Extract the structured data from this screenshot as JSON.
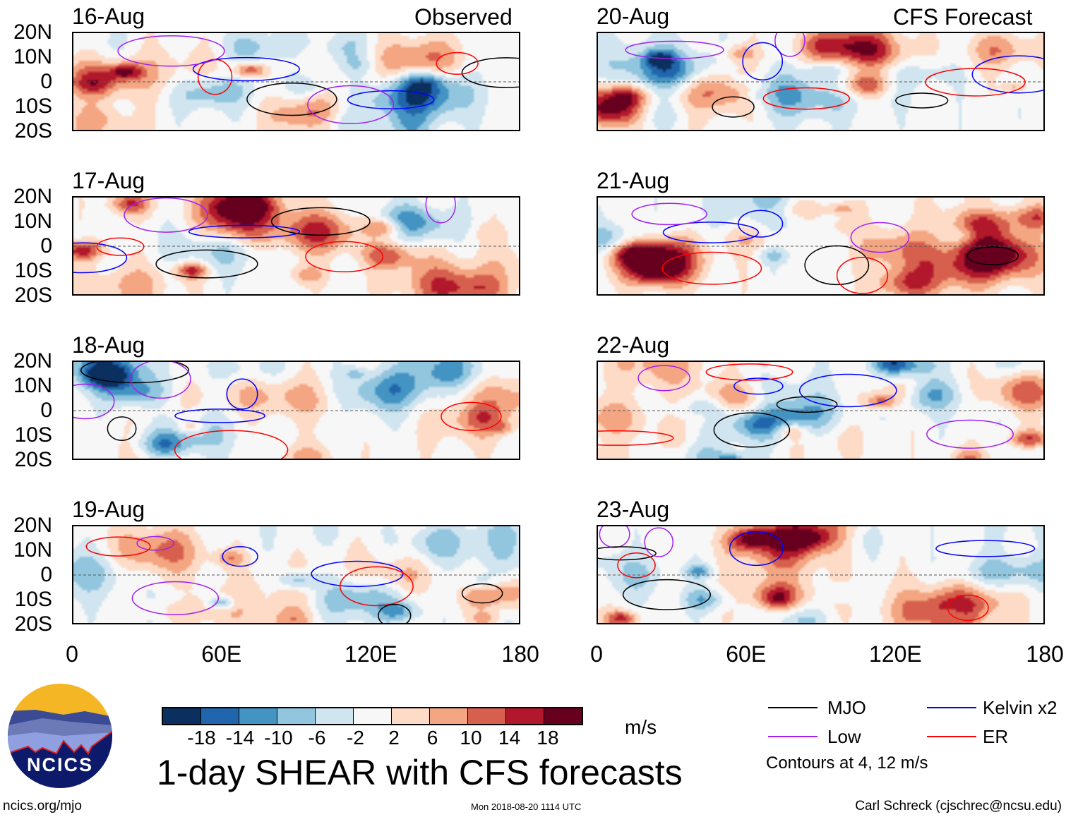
{
  "headers": {
    "observed": "Observed",
    "forecast": "CFS Forecast"
  },
  "panels": [
    {
      "date": "16-Aug",
      "column": "observed"
    },
    {
      "date": "17-Aug",
      "column": "observed"
    },
    {
      "date": "18-Aug",
      "column": "observed"
    },
    {
      "date": "19-Aug",
      "column": "observed"
    },
    {
      "date": "20-Aug",
      "column": "forecast"
    },
    {
      "date": "21-Aug",
      "column": "forecast"
    },
    {
      "date": "22-Aug",
      "column": "forecast"
    },
    {
      "date": "23-Aug",
      "column": "forecast"
    }
  ],
  "lat_labels": [
    "20N",
    "10N",
    "0",
    "10S",
    "20S"
  ],
  "lon_labels": [
    "0",
    "60E",
    "120E",
    "180"
  ],
  "colorbar": {
    "colors": [
      "#0b305f",
      "#2166ac",
      "#4393c3",
      "#92c5de",
      "#d1e5f0",
      "#f7f7f7",
      "#fddbc7",
      "#f4a582",
      "#d6604d",
      "#b2182b",
      "#67001f"
    ],
    "labels": [
      "-18",
      "-14",
      "-10",
      "-6",
      "-2",
      "2",
      "6",
      "10",
      "14",
      "18"
    ],
    "units": "m/s"
  },
  "title": "1-day SHEAR with CFS forecasts",
  "legend": {
    "items": [
      {
        "label": "MJO",
        "color": "#000000"
      },
      {
        "label": "Kelvin x2",
        "color": "#0000ff"
      },
      {
        "label": "Low",
        "color": "#a020f0"
      },
      {
        "label": "ER",
        "color": "#ff0000"
      }
    ],
    "note": "Contours at 4, 12 m/s"
  },
  "logo": {
    "text": "NCICS"
  },
  "footer": {
    "url": "ncics.org/mjo",
    "timestamp": "Mon 2018-08-20 1114 UTC",
    "credit": "Carl Schreck (cjschrec@ncsu.edu)"
  }
}
